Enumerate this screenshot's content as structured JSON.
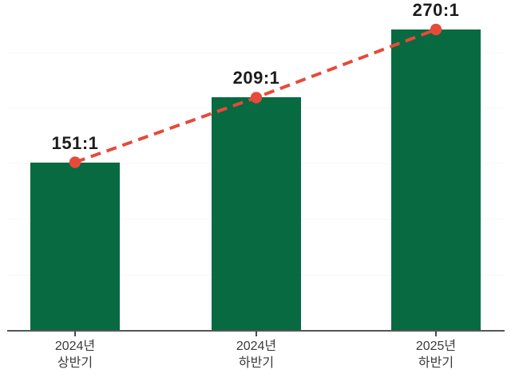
{
  "chart_data": {
    "type": "bar",
    "title": "",
    "xlabel": "",
    "ylabel": "",
    "categories": [
      "2024년 상반기",
      "2024년 하반기",
      "2025년 하반기"
    ],
    "category_lines": [
      [
        "2024년",
        "상반기"
      ],
      [
        "2024년",
        "하반기"
      ],
      [
        "2025년",
        "하반기"
      ]
    ],
    "values": [
      151,
      209,
      270
    ],
    "data_labels": [
      "151:1",
      "209:1",
      "270:1"
    ],
    "ylim": [
      0,
      296
    ],
    "grid": "off",
    "legend": "none",
    "overlay_line": {
      "type": "line",
      "style": "dashed",
      "marker": "circle",
      "x": [
        "2024년 상반기",
        "2024년 하반기",
        "2025년 하반기"
      ],
      "y": [
        151,
        209,
        270
      ]
    },
    "colors": {
      "bar": "#076a41",
      "line": "#e64a3a",
      "marker": "#e64a3a",
      "axis": "#555555",
      "tick": "#4a4a4a",
      "value_label": "#1c1c1c",
      "category_label": "#3a3a3a",
      "background": "#ffffff"
    }
  }
}
